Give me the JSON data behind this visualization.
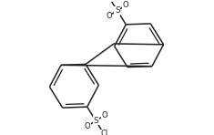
{
  "background": "#ffffff",
  "line_color": "#222222",
  "line_width": 1.1,
  "figsize": [
    2.35,
    1.48
  ],
  "dpi": 100,
  "xlim": [
    0,
    235
  ],
  "ylim": [
    0,
    148
  ]
}
